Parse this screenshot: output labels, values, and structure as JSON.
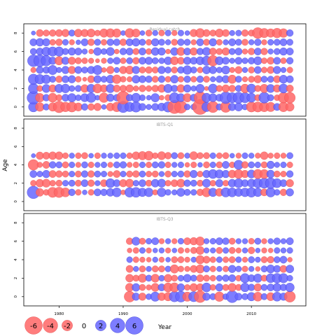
{
  "chart_data": {
    "type": "scatter",
    "subtype": "bubble-residual",
    "xlabel": "Year",
    "ylabel": "Age",
    "xlim": [
      1974.5,
      2018.5
    ],
    "ylim": [
      -1,
      9
    ],
    "x_ticks": [
      1980,
      1990,
      2000,
      2010
    ],
    "y_ticks": [
      0,
      2,
      4,
      6,
      8
    ],
    "colors": {
      "positive": "#6666ff",
      "negative": "#ff6666",
      "edge_positive": "#3333cc",
      "edge_negative": "#e04444"
    },
    "legend": {
      "placement": "bottom",
      "entries": [
        {
          "value": -6,
          "label": "-6"
        },
        {
          "value": -4,
          "label": "-4"
        },
        {
          "value": -2,
          "label": "-2"
        },
        {
          "value": 0,
          "label": "0"
        },
        {
          "value": 2,
          "label": "2"
        },
        {
          "value": 4,
          "label": "4"
        },
        {
          "value": 6,
          "label": "6"
        }
      ]
    },
    "panels": [
      {
        "title": "Residual catch",
        "years": [
          1976,
          2016
        ],
        "ages": [
          0,
          1,
          2,
          3,
          4,
          5,
          6,
          7,
          8
        ],
        "residuals": {
          "0": [
            1.7,
            -1.3,
            0.6,
            -1.2,
            -2.4,
            -1.6,
            -1.8,
            -1.1,
            0.7,
            -0.7,
            -0.9,
            0.3,
            -1,
            -1.6,
            2.3,
            1.5,
            1.9,
            0.8,
            0.4,
            0.8,
            1,
            1.9,
            -3.3,
            -2.9,
            0.5,
            0.5,
            -4.4,
            1.5,
            -2.3,
            0.6,
            -2.1,
            0.9,
            1.1,
            0.5,
            -1.8,
            -1.8,
            -1.6,
            -1.5,
            0.8,
            -1.6,
            -1.2
          ],
          "1": [
            3,
            -1.3,
            0.7,
            -1.4,
            -0.6,
            0.8,
            1.2,
            0.5,
            1.1,
            1.6,
            0.3,
            -1.6,
            0.9,
            0.7,
            -3.1,
            0.7,
            1.4,
            0.5,
            0.3,
            1.2,
            -0.3,
            -0.6,
            1.8,
            1.1,
            -1.2,
            0.8,
            -2.7,
            1.4,
            1.1,
            0.8,
            2.5,
            1.8,
            2.2,
            1.8,
            1.4,
            -0.6,
            2.1,
            0.6,
            -0.5,
            -2,
            -2.1
          ],
          "2": [
            1.8,
            -0.5,
            1.1,
            -0.9,
            1.2,
            1.3,
            0.5,
            0.6,
            -1,
            1.2,
            -1.4,
            -0.9,
            1.2,
            -0.8,
            -0.7,
            -0.9,
            -0.4,
            -0.7,
            -0.5,
            -0.7,
            -1,
            1.2,
            0.7,
            -1,
            0.9,
            0.4,
            1.2,
            -0.2,
            1.4,
            -0.6,
            -0.9,
            -0.7,
            0.6,
            -1.3,
            1.4,
            -0.6,
            -1.2,
            1.1,
            -0.9,
            1.4,
            -0.8
          ],
          "3": [
            1.9,
            1.6,
            1.3,
            0.6,
            -0.7,
            0.8,
            0.9,
            -0.5,
            -0.2,
            -0.8,
            0.9,
            0.6,
            1.1,
            -1.3,
            -0.5,
            -0.4,
            1,
            0.8,
            0.7,
            -0.6,
            0.7,
            -0.5,
            1,
            -0.5,
            0.7,
            -0.5,
            0.7,
            -0.6,
            0.4,
            0.7,
            0.9,
            -1.2,
            0.6,
            -0.4,
            -0.6,
            -0.9,
            0.6,
            0.6,
            -0.8,
            1.1,
            0.8
          ],
          "4": [
            -0.4,
            0.8,
            0.7,
            1.5,
            0.4,
            0.9,
            -0.9,
            0.8,
            0.6,
            0.9,
            1.5,
            -0.3,
            -0.9,
            0.4,
            -0.9,
            -1.1,
            0.9,
            -0.6,
            -0.7,
            -0.6,
            0.9,
            0.6,
            -0.6,
            0.7,
            1.3,
            0.6,
            -0.5,
            1,
            0.9,
            0.5,
            1.1,
            -0.4,
            -0.8,
            0.4,
            -0.6,
            0.8,
            -0.5,
            -0.8,
            0.9,
            0.4,
            -0.5
          ],
          "5": [
            2.5,
            2.6,
            1.9,
            0.9,
            -1.2,
            0.9,
            -0.9,
            -0.6,
            -0.5,
            -0.4,
            -0.2,
            -0.4,
            0.5,
            0.8,
            -0.5,
            0.6,
            -0.7,
            0.8,
            0.9,
            0.6,
            0.5,
            1,
            -1.1,
            -0.8,
            0.9,
            0.8,
            1.1,
            1.5,
            -2,
            1.1,
            0.8,
            0.4,
            0.8,
            0.5,
            0.7,
            1.1,
            -0.5,
            -0.8,
            0.8,
            -0.5,
            0.7
          ],
          "6": [
            0.6,
            0.8,
            1.3,
            1.5,
            1.5,
            0.6,
            0.9,
            0.8,
            0.4,
            -0.3,
            1,
            0.5,
            1.1,
            -0.3,
            0.7,
            0.8,
            -0.6,
            0.8,
            -0.5,
            1,
            0.9,
            -0.3,
            1,
            -1.1,
            0.8,
            -0.9,
            0.7,
            1.1,
            -0.8,
            -0.6,
            -0.9,
            0.6,
            0.8,
            -0.4,
            -0.7,
            0.8,
            -0.7,
            0.4,
            0.6,
            0.9,
            0.8
          ],
          "7": [
            0.8,
            1,
            0.9,
            -0.5,
            -0.7,
            0.5,
            -0.4,
            0.3,
            0.8,
            -0.7,
            0.6,
            -0.5,
            0.7,
            0.7,
            -0.7,
            0.8,
            1,
            0.6,
            -0.5,
            0.9,
            0.6,
            0.4,
            -0.6,
            0.7,
            0.6,
            -0.4,
            0.8,
            -0.6,
            0.9,
            -0.5,
            0.4,
            0.8,
            0.6,
            -0.6,
            0.4,
            0.7,
            -0.4,
            0.5,
            0.6,
            0.8,
            0.6
          ],
          "8": [
            0.2,
            -0.8,
            -0.6,
            -0.7,
            -0.8,
            -0.9,
            0.6,
            -1,
            -0.9,
            -1.1,
            -0.5,
            -1.2,
            -1.3,
            -1.2,
            0.3,
            -1.4,
            -1.1,
            0.3,
            -0.6,
            0.4,
            -0.5,
            0.5,
            -0.4,
            0.5,
            0.3,
            -0.9,
            -1.4,
            -0.8,
            -0.6,
            -1.1,
            -0.8,
            0.4,
            0.5,
            -0.7,
            -0.6,
            -2.1,
            -1.5,
            -1.2,
            -1.6,
            -1.3,
            0.7
          ]
        }
      },
      {
        "title": "IBTS-Q1",
        "years": [
          1976,
          2016
        ],
        "ages": [
          1,
          2,
          3,
          4,
          5
        ],
        "residuals": {
          "1": [
            2.9,
            -1,
            -0.5,
            -1.8,
            -1.9,
            -1.4,
            0.7,
            -0.5,
            0.3,
            -0.5,
            0.8,
            0.7,
            1,
            1.4,
            -0.3,
            1.6,
            1.7,
            1.2,
            1.3,
            -0.4,
            1.3,
            0.5,
            0.4,
            1.1,
            0.6,
            0.5,
            -0.7,
            -1.4,
            1.2,
            -1,
            1.5,
            1.4,
            1.1,
            1.3,
            1.6,
            1.2,
            -0.8,
            1.5,
            0.5,
            -0.7,
            0.9
          ],
          "2": [
            -0.5,
            -1,
            -1.1,
            -0.5,
            -0.6,
            0.5,
            0.6,
            -0.6,
            0.8,
            -0.7,
            0.4,
            -0.8,
            1.4,
            0.8,
            -0.9,
            -1.1,
            0.5,
            0.8,
            -0.6,
            1,
            1.1,
            -0.5,
            -0.8,
            -1.1,
            0.7,
            0.6,
            -0.6,
            1.1,
            -0.5,
            0.9,
            -0.5,
            1,
            1.4,
            0.8,
            1.1,
            1.5,
            1.8,
            2,
            1.4,
            0.8,
            -0.9
          ],
          "3": [
            0.8,
            0.5,
            0.9,
            -0.8,
            -0.7,
            -0.6,
            0.5,
            -0.6,
            0.7,
            -0.7,
            0.6,
            0.5,
            -0.4,
            -0.8,
            0.5,
            -0.6,
            -0.7,
            0.6,
            -0.5,
            -0.6,
            0.4,
            -0.6,
            0.5,
            0.6,
            -0.7,
            0.9,
            -0.5,
            0.9,
            1.4,
            1.2,
            0.9,
            -1,
            -1.4,
            -0.9,
            1.1,
            -1.5,
            -1.4,
            1,
            -0.6,
            -0.5,
            0.7
          ],
          "4": [
            -2,
            -0.4,
            -0.8,
            0.7,
            0.6,
            -0.6,
            0.5,
            -0.4,
            0.6,
            -0.5,
            0.4,
            0.5,
            -0.4,
            0.6,
            0.7,
            -0.4,
            -0.5,
            0.5,
            -0.5,
            0.6,
            0.7,
            -0.5,
            0.4,
            0.5,
            -0.3,
            -0.5,
            0.3,
            -0.6,
            0.5,
            -0.6,
            0.8,
            -0.5,
            1.5,
            -0.7,
            0.6,
            0.5,
            -0.6,
            0.9,
            0.4,
            0.5,
            -0.5
          ],
          "5": [
            0.2,
            -0.9,
            -0.8,
            -1,
            -1,
            -0.5,
            0.4,
            -0.5,
            -0.6,
            0.3,
            -0.5,
            0.4,
            0.4,
            0.5,
            0.5,
            -0.5,
            -1,
            -1.2,
            -1.4,
            -0.5,
            -1.1,
            -0.7,
            0.6,
            -0.6,
            0.4,
            -1.1,
            -0.6,
            -0.6,
            0.5,
            -0.5,
            -0.6,
            0.3,
            -0.4,
            0.5,
            0.4,
            -0.4,
            -1,
            -0.4,
            -0.5,
            -0.4,
            0.6
          ]
        }
      },
      {
        "title": "IBTS-Q3",
        "years": [
          1991,
          2016
        ],
        "ages": [
          0,
          1,
          2,
          3,
          4,
          5,
          6
        ],
        "residuals": {
          "0": [
            -2.1,
            0.9,
            -0.9,
            0.5,
            1.5,
            -1,
            -1.2,
            1.9,
            2.1,
            -1.5,
            1.8,
            -2.5,
            0.9,
            0.6,
            -1.6,
            0.5,
            2.6,
            0.8,
            0.6,
            1.2,
            -1.4,
            0.6,
            -1.1,
            1.4,
            0.9,
            -2.2
          ],
          "1": [
            -1.1,
            1,
            -0.6,
            -0.4,
            -1.1,
            0.8,
            -1.4,
            -1.5,
            0.9,
            -0.5,
            -1,
            -0.9,
            1.4,
            -0.5,
            0.9,
            -0.6,
            -1.1,
            -0.6,
            1.3,
            0.7,
            -0.9,
            0.6,
            0.8,
            1.1,
            0.7,
            1.3
          ],
          "2": [
            -1,
            -0.6,
            -1.2,
            0.6,
            -1.1,
            0.5,
            -1,
            -0.6,
            0.5,
            1,
            0.6,
            -0.8,
            -0.6,
            -0.5,
            0.5,
            0.7,
            0.8,
            -0.5,
            1.5,
            0.8,
            1.2,
            -0.6,
            1.4,
            1.6,
            1.5,
            0.5
          ],
          "3": [
            -0.8,
            0.4,
            -0.6,
            0.4,
            -0.6,
            -0.6,
            0.5,
            -1.2,
            -0.5,
            -0.4,
            -0.8,
            -1.2,
            0.6,
            -0.5,
            0.4,
            -0.5,
            0.9,
            0.5,
            -0.5,
            0.4,
            -0.3,
            0.6,
            1.1,
            0.8,
            -0.8,
            1
          ],
          "4": [
            0.5,
            -0.5,
            -0.4,
            -0.3,
            0.4,
            -0.4,
            0.3,
            -0.6,
            -0.6,
            -0.4,
            0.4,
            -1.2,
            -0.8,
            -0.5,
            0.5,
            -0.5,
            -0.6,
            0.5,
            -0.4,
            0.6,
            0.4,
            -0.6,
            -0.7,
            0.6,
            0.8,
            -0.3
          ],
          "5": [
            -0.3,
            -0.5,
            0.5,
            -0.4,
            0.3,
            0.4,
            -0.4,
            0.3,
            -0.5,
            -0.3,
            -0.6,
            -1.1,
            0.4,
            0.4,
            -0.6,
            0.5,
            -0.6,
            -0.4,
            0.4,
            -0.7,
            0.3,
            -0.4,
            -0.3,
            0.5,
            0.4,
            0.5
          ],
          "6": [
            -0.7,
            1.1,
            -0.6,
            0.5,
            0.8,
            -0.4,
            0.4,
            -0.4,
            0.5,
            -0.8,
            -0.9,
            -1.3,
            0.4,
            0.5,
            0.8,
            0.7,
            -0.6,
            0.4,
            0.4,
            -0.5,
            0.6,
            -0.4,
            0.4,
            0.7,
            0.4,
            0.8
          ]
        }
      }
    ]
  }
}
